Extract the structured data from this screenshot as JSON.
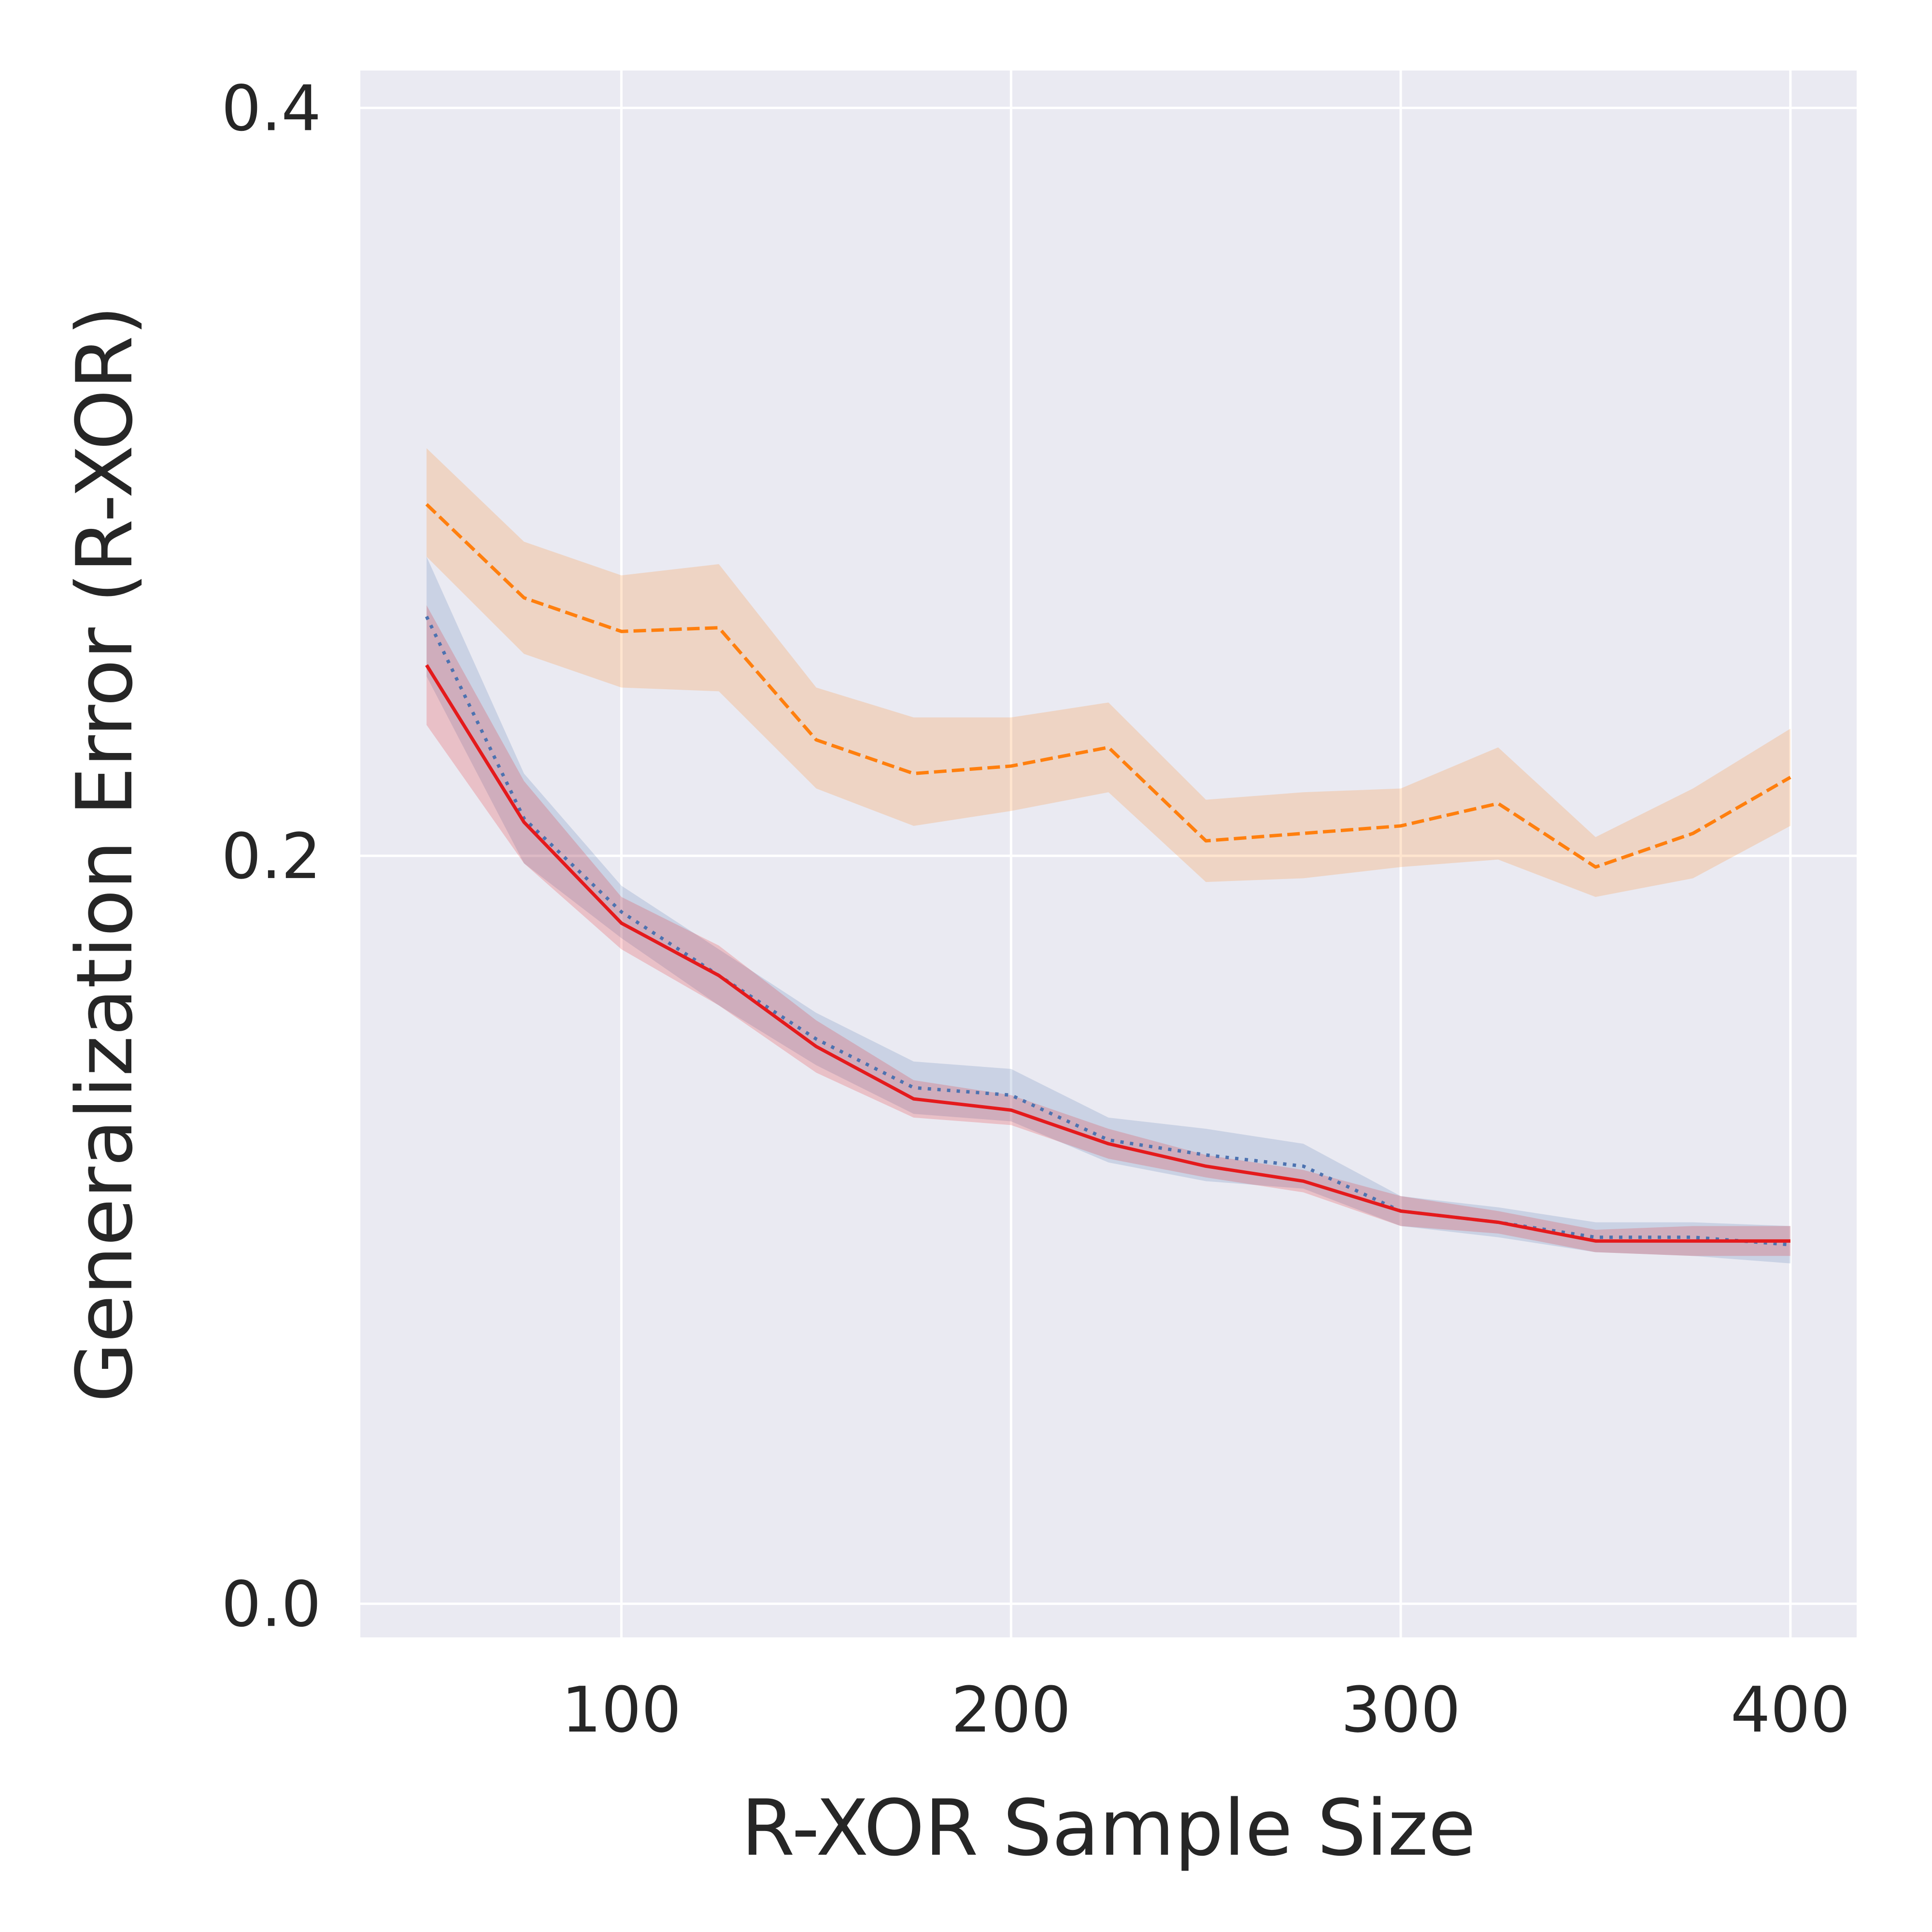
{
  "chart_data": {
    "type": "line",
    "xlabel": "R-XOR Sample Size",
    "ylabel": "Generalization Error (R-XOR)",
    "xlim": [
      33,
      417
    ],
    "ylim": [
      -0.009,
      0.41
    ],
    "xticks": [
      100,
      200,
      300,
      400
    ],
    "xtick_labels": [
      "100",
      "200",
      "300",
      "400"
    ],
    "yticks": [
      0.0,
      0.2,
      0.4
    ],
    "ytick_labels": [
      "0.0",
      "0.2",
      "0.4"
    ],
    "grid": true,
    "background": "#eaeaf2",
    "x": [
      50,
      75,
      100,
      125,
      150,
      175,
      200,
      225,
      250,
      275,
      300,
      325,
      350,
      375,
      400
    ],
    "series": [
      {
        "color": "#ff7f0e",
        "style": "dashed",
        "values": [
          0.294,
          0.269,
          0.26,
          0.261,
          0.231,
          0.222,
          0.224,
          0.229,
          0.204,
          0.206,
          0.208,
          0.214,
          0.197,
          0.206,
          0.221
        ],
        "upper": [
          0.309,
          0.284,
          0.275,
          0.278,
          0.245,
          0.237,
          0.237,
          0.241,
          0.215,
          0.217,
          0.218,
          0.229,
          0.205,
          0.218,
          0.234
        ],
        "lower": [
          0.28,
          0.254,
          0.245,
          0.244,
          0.218,
          0.208,
          0.212,
          0.217,
          0.193,
          0.194,
          0.197,
          0.199,
          0.189,
          0.194,
          0.208
        ]
      },
      {
        "color": "#4c72b0",
        "style": "dotted",
        "values": [
          0.264,
          0.21,
          0.185,
          0.168,
          0.151,
          0.138,
          0.136,
          0.124,
          0.12,
          0.117,
          0.105,
          0.102,
          0.098,
          0.098,
          0.096
        ],
        "upper": [
          0.28,
          0.222,
          0.192,
          0.175,
          0.158,
          0.145,
          0.143,
          0.13,
          0.127,
          0.123,
          0.109,
          0.106,
          0.102,
          0.102,
          0.101
        ],
        "lower": [
          0.248,
          0.198,
          0.178,
          0.16,
          0.144,
          0.131,
          0.129,
          0.118,
          0.113,
          0.111,
          0.101,
          0.098,
          0.094,
          0.093,
          0.091
        ]
      },
      {
        "color": "#e41a1c",
        "style": "solid",
        "values": [
          0.251,
          0.209,
          0.182,
          0.168,
          0.149,
          0.135,
          0.132,
          0.123,
          0.117,
          0.113,
          0.105,
          0.102,
          0.097,
          0.097,
          0.097
        ],
        "upper": [
          0.267,
          0.22,
          0.189,
          0.176,
          0.156,
          0.14,
          0.136,
          0.127,
          0.12,
          0.116,
          0.109,
          0.105,
          0.1,
          0.101,
          0.101
        ],
        "lower": [
          0.235,
          0.198,
          0.175,
          0.16,
          0.142,
          0.13,
          0.128,
          0.119,
          0.114,
          0.11,
          0.101,
          0.099,
          0.094,
          0.093,
          0.093
        ]
      }
    ]
  }
}
